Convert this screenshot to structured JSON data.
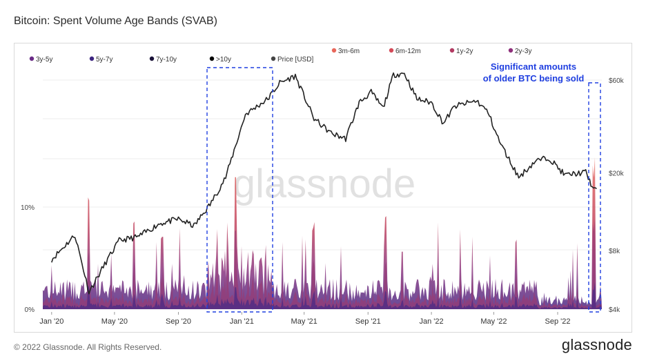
{
  "header": {
    "title": "Bitcoin: Spent Volume Age Bands (SVAB)"
  },
  "footer": {
    "copyright": "© 2022 Glassnode. All Rights Reserved.",
    "logo_text": "glassnode"
  },
  "watermark": "glassnode",
  "colors": {
    "price_line": "#222222",
    "highlight_box": "#1f3fe0",
    "annotation_text": "#1f3fe0",
    "band_3m_6m": "#e8675b",
    "band_6m_12m": "#d44a58",
    "band_1y_2y": "#b23a62",
    "band_2y_3y": "#8e2f7a",
    "band_3y_5y": "#6a2b86",
    "band_5y_7y": "#3d2580",
    "band_7y_10y": "#1a1238",
    "band_10y": "#000000",
    "price_dot": "#444444"
  },
  "chart_data": {
    "type": "area",
    "title": "Bitcoin: Spent Volume Age Bands (SVAB)",
    "legend": [
      {
        "label": "3m-6m",
        "color": "#e8675b"
      },
      {
        "label": "6m-12m",
        "color": "#d44a58"
      },
      {
        "label": "1y-2y",
        "color": "#b23a62"
      },
      {
        "label": "2y-3y",
        "color": "#8e2f7a"
      },
      {
        "label": "3y-5y",
        "color": "#6a2b86"
      },
      {
        "label": "5y-7y",
        "color": "#3d2580"
      },
      {
        "label": "7y-10y",
        "color": "#1a1238"
      },
      {
        "label": ">10y",
        "color": "#000000"
      },
      {
        "label": "Price [USD]",
        "color": "#444444"
      }
    ],
    "x_ticks": [
      "Jan '20",
      "May '20",
      "Sep '20",
      "Jan '21",
      "May '21",
      "Sep '21",
      "Jan '22",
      "May '22",
      "Sep '22"
    ],
    "y_left_ticks": [
      "0%",
      "10%"
    ],
    "y_right_ticks": [
      "$4k",
      "$8k",
      "$20k",
      "$60k"
    ],
    "y_right_scale": "log",
    "price_series": {
      "name": "Price [USD]",
      "x": [
        "2020-01-01",
        "2020-02-15",
        "2020-03-13",
        "2020-04-15",
        "2020-05-10",
        "2020-06-15",
        "2020-07-27",
        "2020-09-01",
        "2020-10-01",
        "2020-11-01",
        "2020-12-01",
        "2021-01-08",
        "2021-02-20",
        "2021-03-15",
        "2021-04-14",
        "2021-05-20",
        "2021-06-22",
        "2021-07-20",
        "2021-08-15",
        "2021-09-07",
        "2021-09-30",
        "2021-10-20",
        "2021-11-10",
        "2021-12-04",
        "2022-01-01",
        "2022-01-24",
        "2022-02-15",
        "2022-03-29",
        "2022-04-20",
        "2022-05-12",
        "2022-06-18",
        "2022-07-20",
        "2022-08-15",
        "2022-09-15",
        "2022-10-25",
        "2022-11-09",
        "2022-11-15"
      ],
      "y": [
        7200,
        9600,
        4900,
        7000,
        9000,
        9400,
        11000,
        11600,
        10700,
        13800,
        19000,
        40000,
        48000,
        58000,
        63000,
        38000,
        32000,
        30000,
        46000,
        52000,
        43000,
        64000,
        65000,
        48000,
        46000,
        36000,
        44000,
        47000,
        41000,
        29000,
        19000,
        23000,
        24000,
        19500,
        20200,
        16500,
        16600
      ]
    },
    "volume_bands": {
      "description_values_percent": true,
      "peak_values": [
        {
          "x": "2020-03-12",
          "y": 11.5,
          "band": "3m-6m"
        },
        {
          "x": "2020-08-01",
          "y": 8.0,
          "band": "3m-6m"
        },
        {
          "x": "2020-12-20",
          "y": 14.5,
          "band": "6m-12m"
        },
        {
          "x": "2021-05-19",
          "y": 9.0,
          "band": "3m-6m"
        },
        {
          "x": "2021-10-05",
          "y": 10.5,
          "band": "3m-6m"
        },
        {
          "x": "2022-06-13",
          "y": 7.0,
          "band": "6m-12m"
        },
        {
          "x": "2022-11-10",
          "y": 15.0,
          "band": "1y-2y"
        }
      ]
    },
    "annotations": [
      {
        "text": "Significant amounts",
        "kind": "callout"
      },
      {
        "text": "of older BTC being sold",
        "kind": "callout"
      }
    ],
    "highlight_ranges": [
      {
        "x_start": "2020-10-15",
        "x_end": "2021-02-20"
      },
      {
        "x_start": "2022-11-01",
        "x_end": "2022-11-30"
      }
    ]
  }
}
